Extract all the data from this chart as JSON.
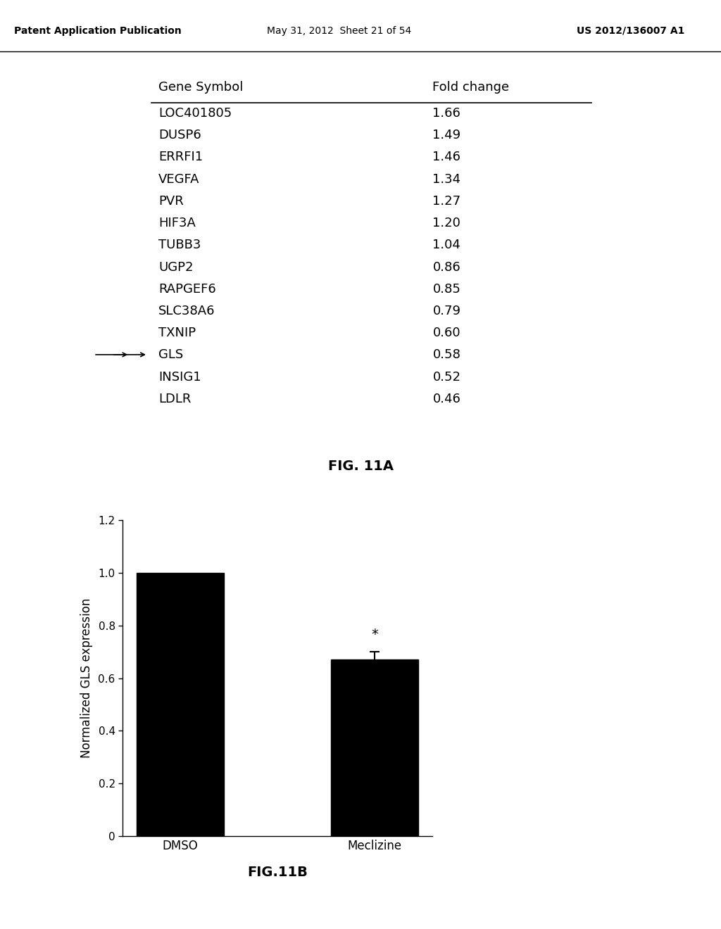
{
  "header_left": "Patent Application Publication",
  "header_mid": "May 31, 2012  Sheet 21 of 54",
  "header_right": "US 2012/136007 A1",
  "table_col1_header": "Gene Symbol",
  "table_col2_header": "Fold change",
  "table_data": [
    [
      "LOC401805",
      "1.66"
    ],
    [
      "DUSP6",
      "1.49"
    ],
    [
      "ERRFI1",
      "1.46"
    ],
    [
      "VEGFA",
      "1.34"
    ],
    [
      "PVR",
      "1.27"
    ],
    [
      "HIF3A",
      "1.20"
    ],
    [
      "TUBB3",
      "1.04"
    ],
    [
      "UGP2",
      "0.86"
    ],
    [
      "RAPGEF6",
      "0.85"
    ],
    [
      "SLC38A6",
      "0.79"
    ],
    [
      "TXNIP",
      "0.60"
    ],
    [
      "GLS",
      "0.58"
    ],
    [
      "INSIG1",
      "0.52"
    ],
    [
      "LDLR",
      "0.46"
    ]
  ],
  "gls_row_index": 11,
  "fig_11a_label": "FIG. 11A",
  "bar_categories": [
    "DMSO",
    "Meclizine"
  ],
  "bar_values": [
    1.0,
    0.67
  ],
  "bar_errors": [
    0.0,
    0.03
  ],
  "bar_color": "#000000",
  "ylabel": "Normalized GLS expression",
  "ylim": [
    0,
    1.2
  ],
  "yticks": [
    0,
    0.2,
    0.4,
    0.6,
    0.8,
    1.0,
    1.2
  ],
  "fig_11b_label": "FIG.11B",
  "significance_label": "*",
  "background_color": "#ffffff",
  "text_color": "#000000"
}
